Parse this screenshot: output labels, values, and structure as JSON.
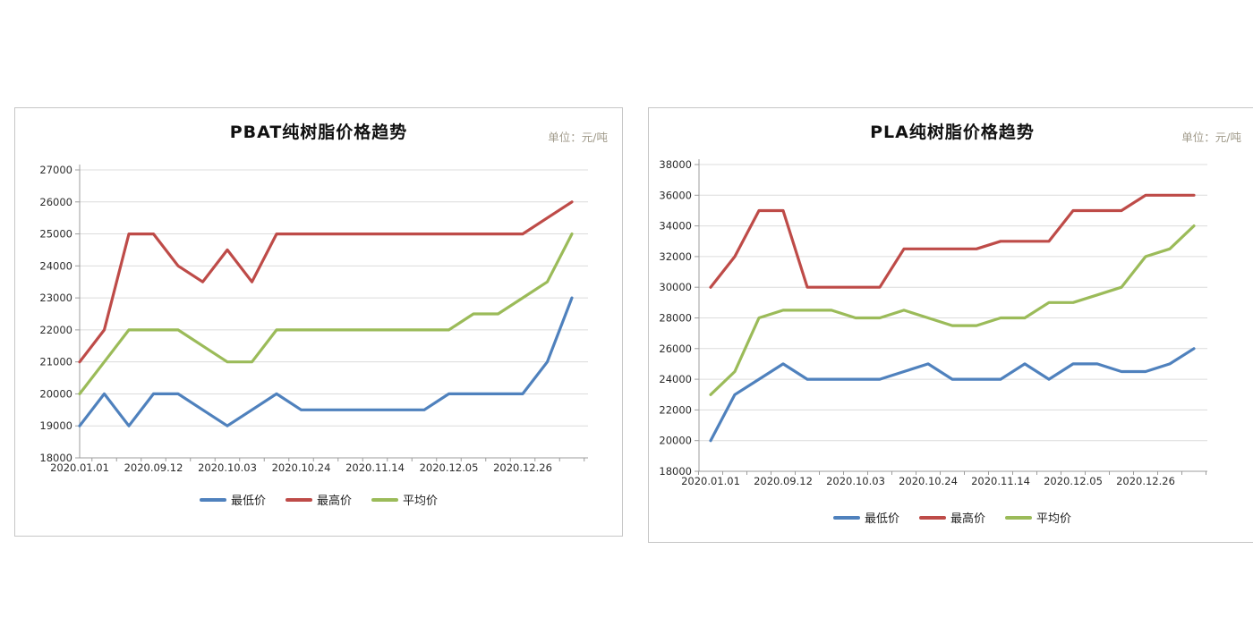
{
  "chart_data": [
    {
      "type": "line",
      "title": "PBAT纯树脂价格趋势",
      "unit_note": "单位：元/吨",
      "ylim": [
        18000,
        27000
      ],
      "y_step": 1000,
      "grid": true,
      "legend_position": "bottom",
      "n_points": 21,
      "x_tick_labels": [
        "2020.01.01",
        "2020.09.12",
        "2020.10.03",
        "2020.10.24",
        "2020.11.14",
        "2020.12.05",
        "2020.12.26"
      ],
      "x_label_interval": 3,
      "series": [
        {
          "name": "最低价",
          "color": "#4F81BD",
          "values": [
            19000,
            20000,
            19000,
            20000,
            20000,
            19500,
            19000,
            19500,
            20000,
            19500,
            19500,
            19500,
            19500,
            19500,
            19500,
            20000,
            20000,
            20000,
            20000,
            21000,
            23000
          ]
        },
        {
          "name": "最高价",
          "color": "#BE4B48",
          "values": [
            21000,
            22000,
            25000,
            25000,
            24000,
            23500,
            24500,
            23500,
            25000,
            25000,
            25000,
            25000,
            25000,
            25000,
            25000,
            25000,
            25000,
            25000,
            25000,
            25500,
            26000
          ]
        },
        {
          "name": "平均价",
          "color": "#9BBB59",
          "values": [
            20000,
            21000,
            22000,
            22000,
            22000,
            21500,
            21000,
            21000,
            22000,
            22000,
            22000,
            22000,
            22000,
            22000,
            22000,
            22000,
            22500,
            22500,
            23000,
            23500,
            25000
          ]
        }
      ]
    },
    {
      "type": "line",
      "title": "PLA纯树脂价格趋势",
      "unit_note": "单位：元/吨",
      "ylim": [
        18000,
        38000
      ],
      "y_step": 2000,
      "grid": true,
      "legend_position": "bottom",
      "n_points": 21,
      "x_tick_labels": [
        "2020.01.01",
        "2020.09.12",
        "2020.10.03",
        "2020.10.24",
        "2020.11.14",
        "2020.12.05",
        "2020.12.26"
      ],
      "x_label_interval": 3,
      "series": [
        {
          "name": "最低价",
          "color": "#4F81BD",
          "values": [
            20000,
            23000,
            24000,
            25000,
            24000,
            24000,
            24000,
            24000,
            24500,
            25000,
            24000,
            24000,
            24000,
            25000,
            24000,
            25000,
            25000,
            24500,
            24500,
            25000,
            26000
          ]
        },
        {
          "name": "最高价",
          "color": "#BE4B48",
          "values": [
            30000,
            32000,
            35000,
            35000,
            30000,
            30000,
            30000,
            30000,
            32500,
            32500,
            32500,
            32500,
            33000,
            33000,
            33000,
            35000,
            35000,
            35000,
            36000,
            36000,
            36000
          ]
        },
        {
          "name": "平均价",
          "color": "#9BBB59",
          "values": [
            23000,
            24500,
            28000,
            28500,
            28500,
            28500,
            28000,
            28000,
            28500,
            28000,
            27500,
            27500,
            28000,
            28000,
            29000,
            29000,
            29500,
            30000,
            32000,
            32500,
            34000
          ]
        }
      ]
    }
  ]
}
